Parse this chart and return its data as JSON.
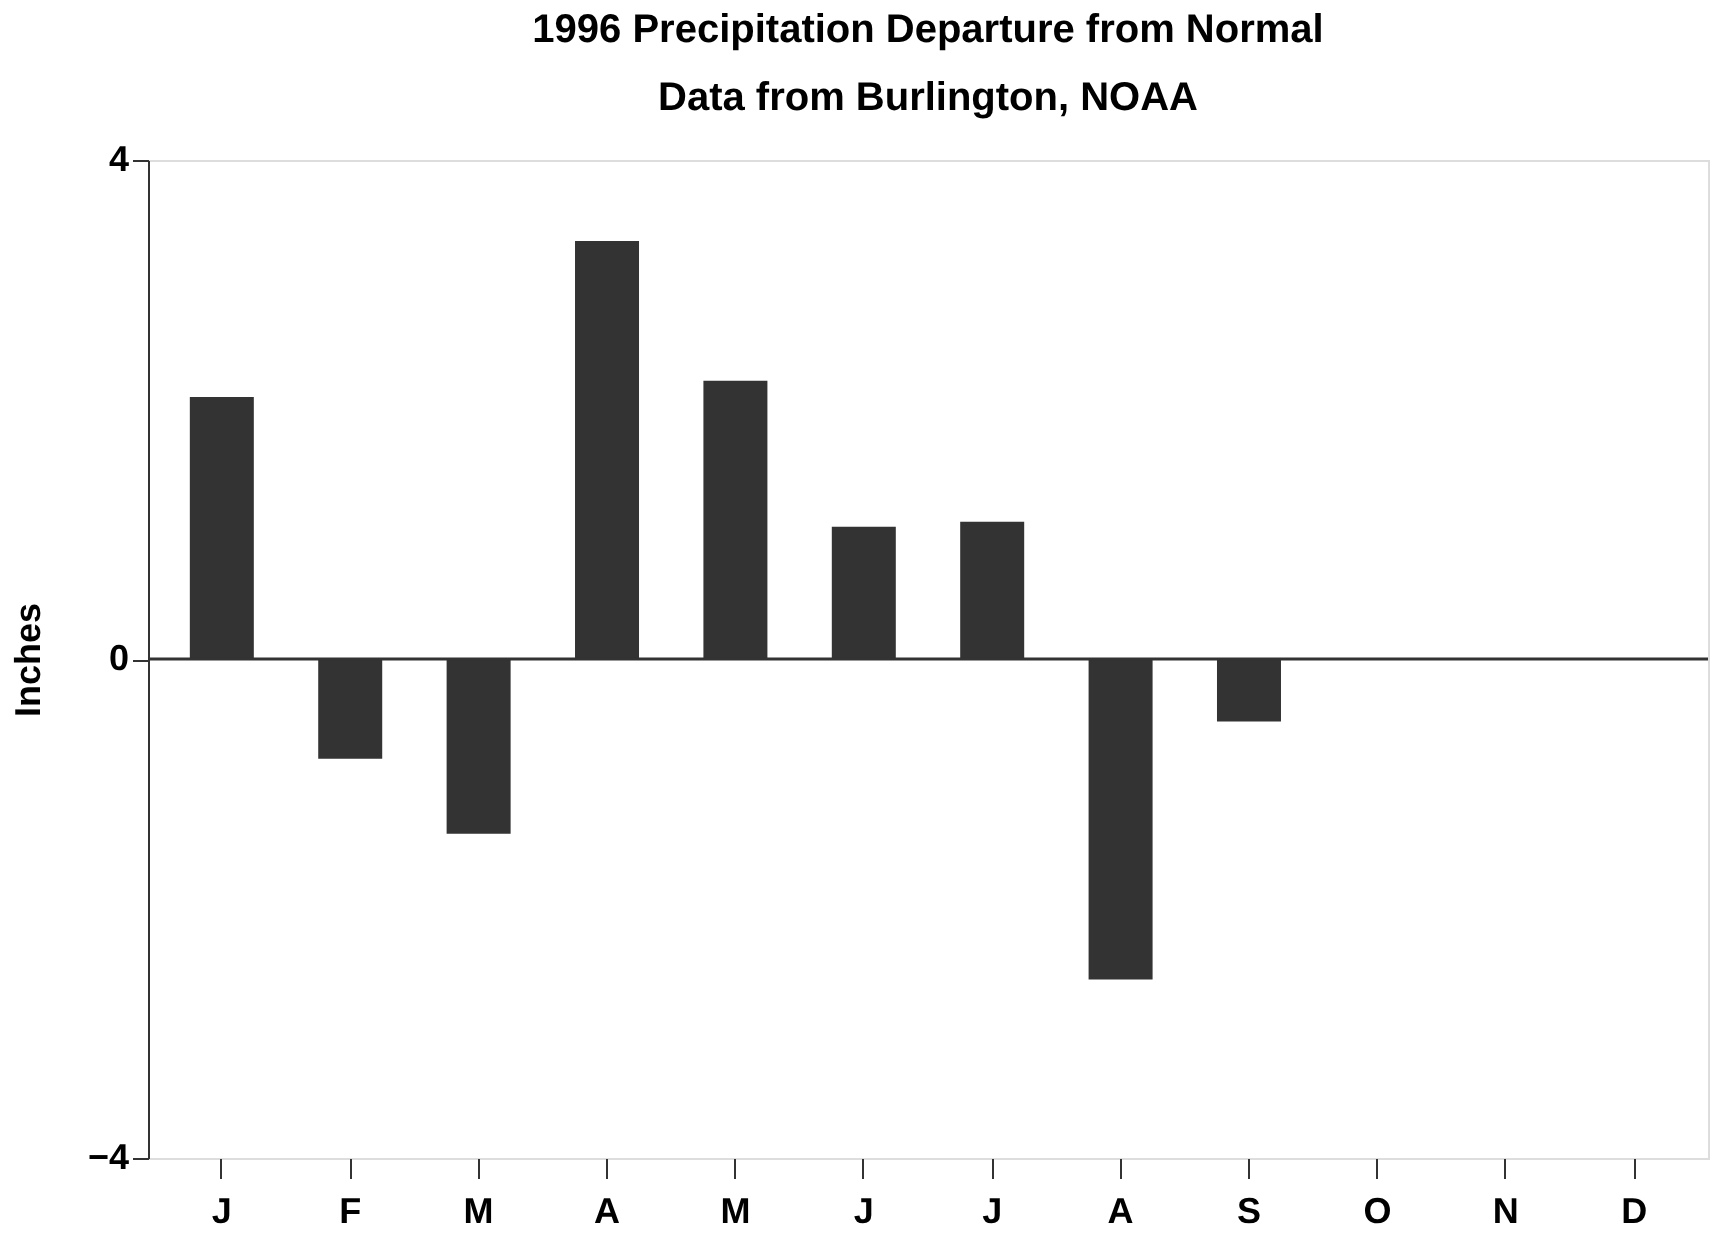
{
  "chart_data": {
    "type": "bar",
    "title": "1996 Precipitation Departure from Normal",
    "subtitle": "Data from Burlington, NOAA",
    "ylabel": "Inches",
    "categories": [
      "J",
      "F",
      "M",
      "A",
      "M",
      "J",
      "J",
      "A",
      "S",
      "O",
      "N",
      "D"
    ],
    "values": [
      2.1,
      -0.8,
      -1.4,
      3.35,
      2.23,
      1.06,
      1.1,
      -2.57,
      -0.5,
      null,
      null,
      null
    ],
    "color": "#333333",
    "ylim": [
      -4,
      4
    ],
    "yticks": [
      -4,
      0,
      4
    ],
    "grid": false,
    "ref_lines": [
      {
        "axis": "y",
        "value": 0,
        "color": "#333333"
      }
    ]
  }
}
